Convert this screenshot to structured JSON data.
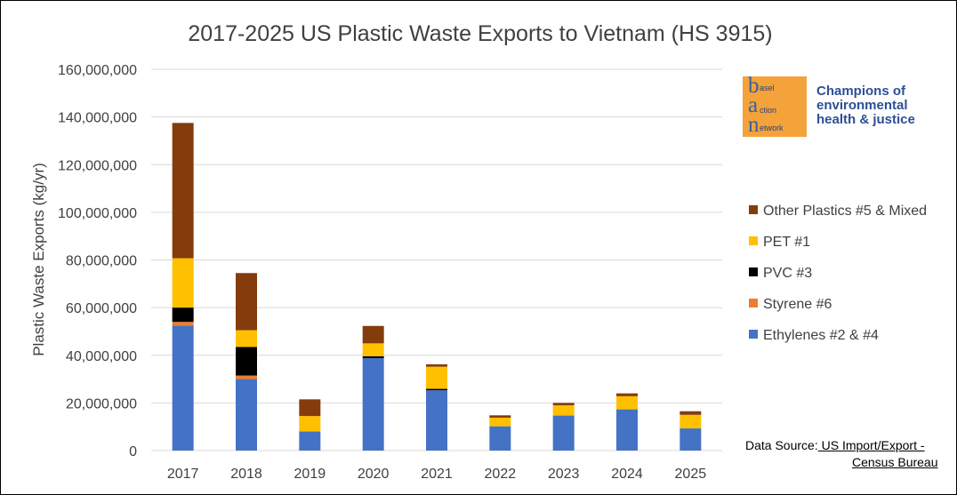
{
  "chart_data": {
    "type": "bar",
    "stacked": true,
    "title": "2017-2025 US Plastic Waste Exports to Vietnam (HS 3915)",
    "ylabel": "Plastic Waste Exports (kg/yr)",
    "xlabel": "",
    "ylim": [
      0,
      160000000
    ],
    "yticks": [
      0,
      20000000,
      40000000,
      60000000,
      80000000,
      100000000,
      120000000,
      140000000,
      160000000
    ],
    "ytick_labels": [
      "0",
      "20,000,000",
      "40,000,000",
      "60,000,000",
      "80,000,000",
      "100,000,000",
      "120,000,000",
      "140,000,000",
      "160,000,000"
    ],
    "grid": true,
    "legend_position": "right",
    "categories": [
      "2017",
      "2018",
      "2019",
      "2020",
      "2021",
      "2022",
      "2023",
      "2024",
      "2025"
    ],
    "series": [
      {
        "name": "Ethylenes #2 & #4",
        "color": "#4472c4",
        "values": [
          52500000,
          30000000,
          8000000,
          38800000,
          25300000,
          10200000,
          14700000,
          17300000,
          9300000
        ]
      },
      {
        "name": "Styrene #6",
        "color": "#ed7d31",
        "values": [
          1500000,
          1500000,
          0,
          0,
          0,
          0,
          0,
          0,
          0
        ]
      },
      {
        "name": "PVC #3",
        "color": "#000000",
        "values": [
          6000000,
          12000000,
          0,
          800000,
          600000,
          0,
          0,
          0,
          0
        ]
      },
      {
        "name": "PET #1",
        "color": "#ffc000",
        "values": [
          20700000,
          7000000,
          6500000,
          5400000,
          9300000,
          3600000,
          4300000,
          5500000,
          5700000
        ]
      },
      {
        "name": "Other Plastics #5 & Mixed",
        "color": "#843c0c",
        "values": [
          56800000,
          24000000,
          7000000,
          7300000,
          1000000,
          1000000,
          1000000,
          1200000,
          1500000
        ]
      }
    ]
  },
  "logo": {
    "letters": [
      "b",
      "a",
      "n"
    ],
    "words": [
      "asel",
      "ction",
      "etwork"
    ],
    "tagline": "Champions of environmental health & justice",
    "box_color": "#f4a23a",
    "letter_color": "#3a5f9e"
  },
  "source": {
    "prefix": "Data Source:",
    "link_text": " US Import/Export -",
    "line2": "Census Bureau"
  }
}
